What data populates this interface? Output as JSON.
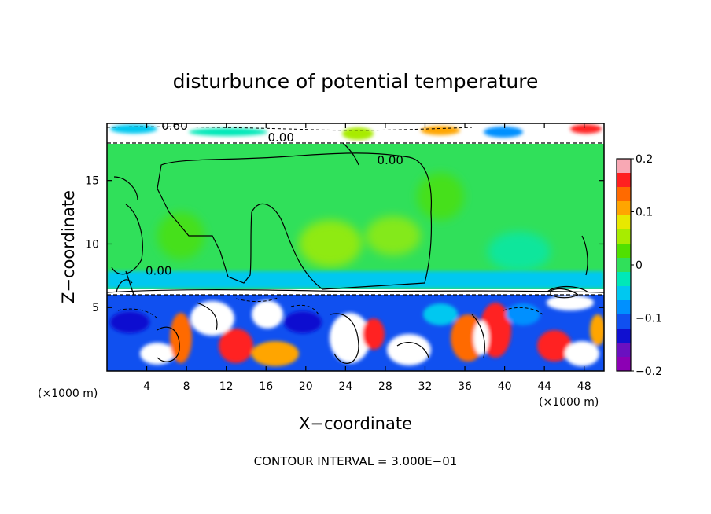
{
  "chart_data": {
    "type": "heatmap",
    "title": "disturbunce of potential temperature",
    "xlabel": "X−coordinate",
    "ylabel": "Z−coordinate",
    "x_unit": "(×1000 m)",
    "y_unit": "(×1000 m)",
    "xlim": [
      0,
      50
    ],
    "ylim": [
      0,
      19.5
    ],
    "x_ticks": [
      4,
      8,
      12,
      16,
      20,
      24,
      28,
      32,
      36,
      40,
      44,
      48
    ],
    "x_tick_labels": [
      "4",
      "8",
      "12",
      "16",
      "20",
      "24",
      "28",
      "32",
      "36",
      "40",
      "44",
      "48"
    ],
    "y_ticks": [
      5,
      10,
      15
    ],
    "y_tick_labels": [
      "5",
      "10",
      "15"
    ],
    "colorbar": {
      "range": [
        -0.2,
        0.2
      ],
      "tick_values": [
        0.2,
        0.1,
        0,
        -0.1,
        -0.2
      ],
      "tick_labels": [
        "0.2",
        "0.1",
        "0",
        "−0.1",
        "−0.2"
      ],
      "colors": [
        "#f8a8b4",
        "#ff2020",
        "#ff6a00",
        "#ffa500",
        "#e8e800",
        "#a8ec00",
        "#50e000",
        "#30e05a",
        "#00e8b8",
        "#00c8f0",
        "#0090ff",
        "#1050f0",
        "#1010d0",
        "#6a10c0",
        "#8c00b4"
      ]
    },
    "contour_interval": "CONTOUR INTERVAL = 3.000E−01",
    "contour_labels": [
      {
        "text": "0.60",
        "x": 6.8,
        "z": 19.3
      },
      {
        "text": "0.00",
        "x": 17.5,
        "z": 18.4
      },
      {
        "text": "0.00",
        "x": 28.5,
        "z": 16.6
      },
      {
        "text": "0.00",
        "x": 5.2,
        "z": 7.9
      }
    ],
    "grid": false,
    "legend": "colorbar-right"
  }
}
